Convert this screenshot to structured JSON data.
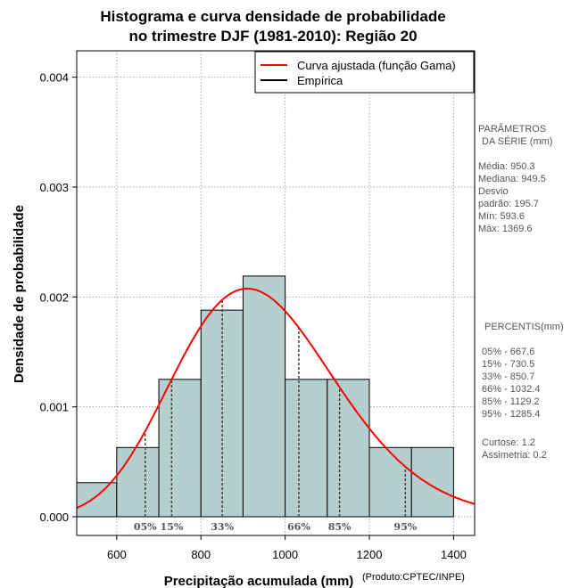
{
  "chart_data": {
    "type": "bar",
    "title_line1": "Histograma e curva densidade de probabilidade",
    "title_line2": "no trimestre DJF (1981-2010): Região 20",
    "xlabel": "Precipitação acumulada (mm)",
    "ylabel": "Densidade de probabilidade",
    "credit": "(Produto:CPTEC/INPE)",
    "xlim": [
      505,
      1450
    ],
    "ylim": [
      -0.00017,
      0.00424
    ],
    "x_ticks": [
      600,
      800,
      1000,
      1200,
      1400
    ],
    "x_tick_labels": [
      "600",
      "800",
      "1000",
      "1200",
      "1400"
    ],
    "y_ticks": [
      0,
      0.001,
      0.002,
      0.003,
      0.004
    ],
    "y_tick_labels": [
      "0.000",
      "0.001",
      "0.002",
      "0.003",
      "0.004"
    ],
    "grid": true,
    "bins": [
      {
        "x0": 500,
        "x1": 600,
        "density": 0.00031
      },
      {
        "x0": 600,
        "x1": 700,
        "density": 0.00063
      },
      {
        "x0": 700,
        "x1": 800,
        "density": 0.00125
      },
      {
        "x0": 800,
        "x1": 900,
        "density": 0.00188
      },
      {
        "x0": 900,
        "x1": 1000,
        "density": 0.00219
      },
      {
        "x0": 1000,
        "x1": 1100,
        "density": 0.00125
      },
      {
        "x0": 1100,
        "x1": 1200,
        "density": 0.00125
      },
      {
        "x0": 1200,
        "x1": 1300,
        "density": 0.00063
      },
      {
        "x0": 1300,
        "x1": 1400,
        "density": 0.00063
      }
    ],
    "bar_color": "#b5cfcf",
    "curve": {
      "name": "Curva ajustada (função Gama)",
      "distribution": "gamma",
      "mean": 950.3,
      "sd": 195.7,
      "color": "#ff0000"
    },
    "legend": [
      {
        "label": "Curva ajustada (função Gama)",
        "color": "#ff0000"
      },
      {
        "label": "Empírica",
        "color": "#000000"
      }
    ],
    "legend_position": "top-right",
    "percentiles": [
      {
        "label": "05%",
        "x": 667.6
      },
      {
        "label": "15%",
        "x": 730.5
      },
      {
        "label": "33%",
        "x": 850.7
      },
      {
        "label": "66%",
        "x": 1032.4
      },
      {
        "label": "85%",
        "x": 1129.2
      },
      {
        "label": "95%",
        "x": 1285.4
      }
    ]
  },
  "side_panel": {
    "params_title_1": "PARÂMETROS",
    "params_title_2": "DA SÉRIE (mm)",
    "media": "Média:  950.3",
    "mediana": "Mediana:  949.5",
    "desvio_1": "Desvio",
    "desvio_2": "padrão:  195.7",
    "min": "Mín:  593.6",
    "max": "Máx:  1369.6",
    "percentis_title": "PERCENTIS(mm)",
    "p05": "05% -  667.6",
    "p15": "15% -  730.5",
    "p33": "33% -  850.7",
    "p66": "66% -  1032.4",
    "p85": "85% -  1129.2",
    "p95": "95% -  1285.4",
    "curtose": "Curtose:  1.2",
    "assimetria": "Assimetria:  0.2"
  }
}
